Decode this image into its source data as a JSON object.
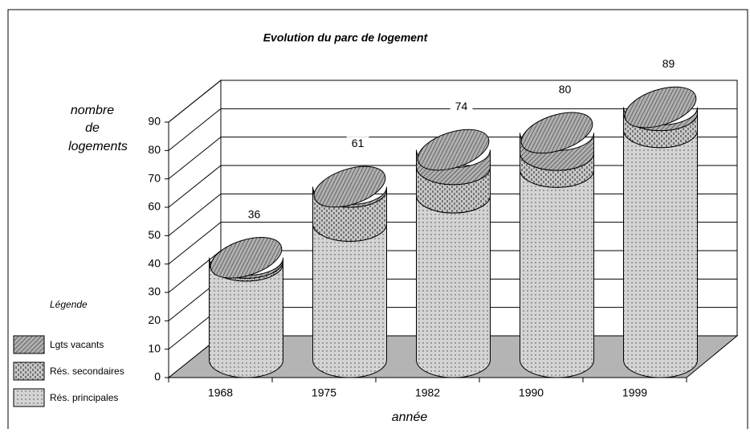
{
  "chart_data": {
    "type": "stacked-cylinder",
    "title": "Evolution du parc de logement",
    "y_label": [
      "nombre",
      "de",
      "logements"
    ],
    "x_label": "année",
    "legend_title": "Légende",
    "categories": [
      "1968",
      "1975",
      "1982",
      "1990",
      "1999"
    ],
    "series": [
      {
        "name": "Rés. principales",
        "color": "#c8c8c8",
        "pattern": "dots",
        "values": [
          34,
          48,
          58,
          67,
          81
        ]
      },
      {
        "name": "Rés. secondaires",
        "color": "#c8c8c8",
        "pattern": "dashes",
        "values": [
          1,
          12,
          10,
          6,
          6
        ]
      },
      {
        "name": "Lgts vacants",
        "color": "#a8a8a8",
        "pattern": "hatch",
        "values": [
          1,
          1,
          6,
          7,
          2
        ]
      }
    ],
    "total_labels": [
      36,
      61,
      74,
      80,
      89
    ],
    "ylim": [
      0,
      90
    ],
    "yticks": [
      0,
      10,
      20,
      30,
      40,
      50,
      60,
      70,
      80,
      90
    ],
    "grid": true
  }
}
